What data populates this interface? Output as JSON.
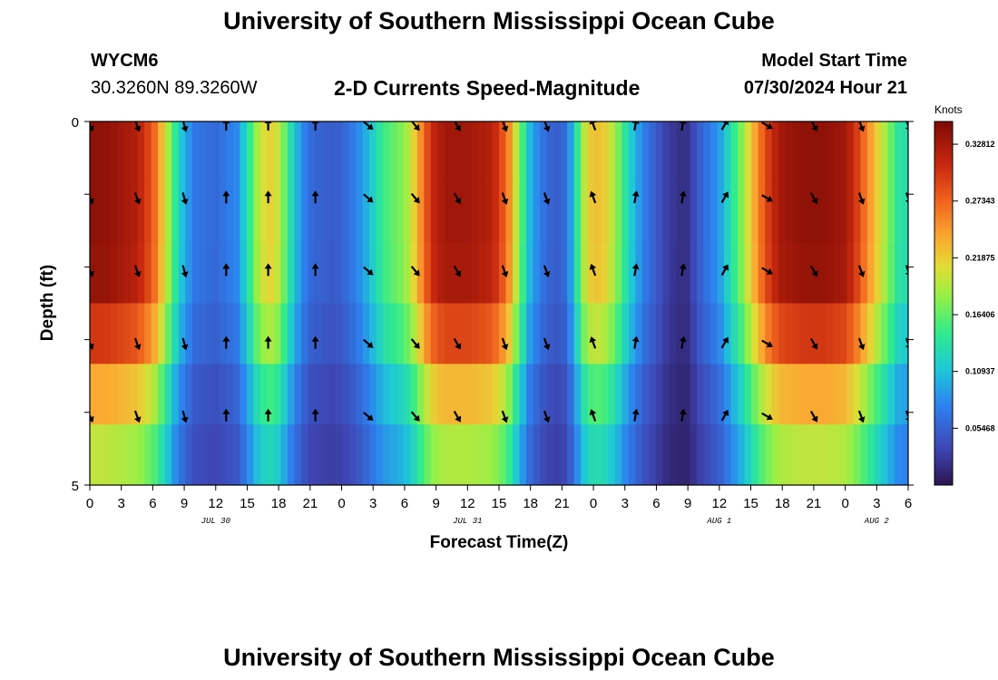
{
  "header": {
    "title": "University of Southern Mississippi Ocean Cube",
    "station_id": "WYCM6",
    "coordinates": "30.3260N  89.3260W",
    "plot_title": "2-D Currents Speed-Magnitude",
    "model_start_label": "Model Start Time",
    "model_start_value": "07/30/2024 Hour 21"
  },
  "footer": {
    "title": "University of Southern Mississippi Ocean Cube"
  },
  "chart_data": {
    "type": "heatmap",
    "title": "2-D Currents Speed-Magnitude",
    "xlabel": "Forecast Time(Z)",
    "ylabel": "Depth (ft)",
    "x_range_hours": [
      0,
      78
    ],
    "y_range_ft": [
      0,
      5
    ],
    "x_tick_labels": [
      "0",
      "3",
      "6",
      "9",
      "12",
      "15",
      "18",
      "21",
      "0",
      "3",
      "6",
      "9",
      "12",
      "15",
      "18",
      "21",
      "0",
      "3",
      "6",
      "9",
      "12",
      "15",
      "18",
      "21",
      "0",
      "3",
      "6"
    ],
    "y_tick_labels": [
      "0",
      "5"
    ],
    "day_labels": [
      {
        "label": "JUL 30",
        "hour": 12
      },
      {
        "label": "JUL 31",
        "hour": 36
      },
      {
        "label": "AUG 1",
        "hour": 60
      },
      {
        "label": "AUG 2",
        "hour": 75
      }
    ],
    "colorbar": {
      "unit": "Knots",
      "range": [
        0.0,
        0.35
      ],
      "ticks": [
        0.05468,
        0.10937,
        0.16406,
        0.21875,
        0.27343,
        0.32812
      ],
      "tick_labels": [
        "0.05468",
        "0.10937",
        "0.16406",
        "0.21875",
        "0.27343",
        "0.32812"
      ]
    },
    "depth_rows_ft": [
      0,
      1,
      2,
      3,
      4,
      5
    ],
    "time_profile_knots": [
      [
        0,
        0.34
      ],
      [
        1.5,
        0.34
      ],
      [
        3,
        0.33
      ],
      [
        4.5,
        0.32
      ],
      [
        6,
        0.28
      ],
      [
        7,
        0.22
      ],
      [
        8,
        0.15
      ],
      [
        9,
        0.1
      ],
      [
        10,
        0.07
      ],
      [
        12,
        0.06
      ],
      [
        14,
        0.08
      ],
      [
        15,
        0.13
      ],
      [
        16,
        0.19
      ],
      [
        17,
        0.22
      ],
      [
        18,
        0.2
      ],
      [
        19,
        0.14
      ],
      [
        20,
        0.09
      ],
      [
        21,
        0.06
      ],
      [
        23,
        0.05
      ],
      [
        24,
        0.055
      ],
      [
        25,
        0.07
      ],
      [
        26,
        0.09
      ],
      [
        27,
        0.12
      ],
      [
        28,
        0.15
      ],
      [
        30,
        0.18
      ],
      [
        31,
        0.22
      ],
      [
        32,
        0.28
      ],
      [
        33,
        0.32
      ],
      [
        34,
        0.33
      ],
      [
        36,
        0.33
      ],
      [
        38,
        0.32
      ],
      [
        39,
        0.3
      ],
      [
        40,
        0.25
      ],
      [
        41,
        0.17
      ],
      [
        42,
        0.1
      ],
      [
        43,
        0.07
      ],
      [
        44,
        0.055
      ],
      [
        45,
        0.05
      ],
      [
        46,
        0.1
      ],
      [
        47,
        0.19
      ],
      [
        48,
        0.23
      ],
      [
        49,
        0.22
      ],
      [
        50,
        0.19
      ],
      [
        51,
        0.14
      ],
      [
        52,
        0.1
      ],
      [
        53,
        0.07
      ],
      [
        54,
        0.05
      ],
      [
        55,
        0.03
      ],
      [
        56,
        0.02
      ],
      [
        57,
        0.02
      ],
      [
        58,
        0.05
      ],
      [
        59,
        0.07
      ],
      [
        60,
        0.09
      ],
      [
        61,
        0.13
      ],
      [
        62,
        0.17
      ],
      [
        63,
        0.22
      ],
      [
        64,
        0.27
      ],
      [
        65,
        0.31
      ],
      [
        66,
        0.33
      ],
      [
        68,
        0.34
      ],
      [
        70,
        0.34
      ],
      [
        72,
        0.33
      ],
      [
        73,
        0.3
      ],
      [
        74,
        0.26
      ],
      [
        75,
        0.22
      ],
      [
        76,
        0.18
      ],
      [
        77,
        0.14
      ],
      [
        78,
        0.13
      ]
    ],
    "depth_factors": [
      1.0,
      1.0,
      0.99,
      0.88,
      0.7,
      0.58
    ],
    "vectors": {
      "hours": [
        0,
        4.5,
        9,
        13,
        17,
        21.5,
        26.5,
        31,
        35,
        39.5,
        43.5,
        48,
        52,
        56.5,
        60.5,
        64.5,
        69,
        73.5,
        78
      ],
      "depths_ft": [
        0,
        1,
        2,
        3,
        4
      ],
      "direction_deg": [
        155,
        160,
        165,
        0,
        0,
        0,
        130,
        140,
        150,
        160,
        160,
        340,
        10,
        10,
        30,
        120,
        150,
        160,
        160
      ]
    }
  }
}
